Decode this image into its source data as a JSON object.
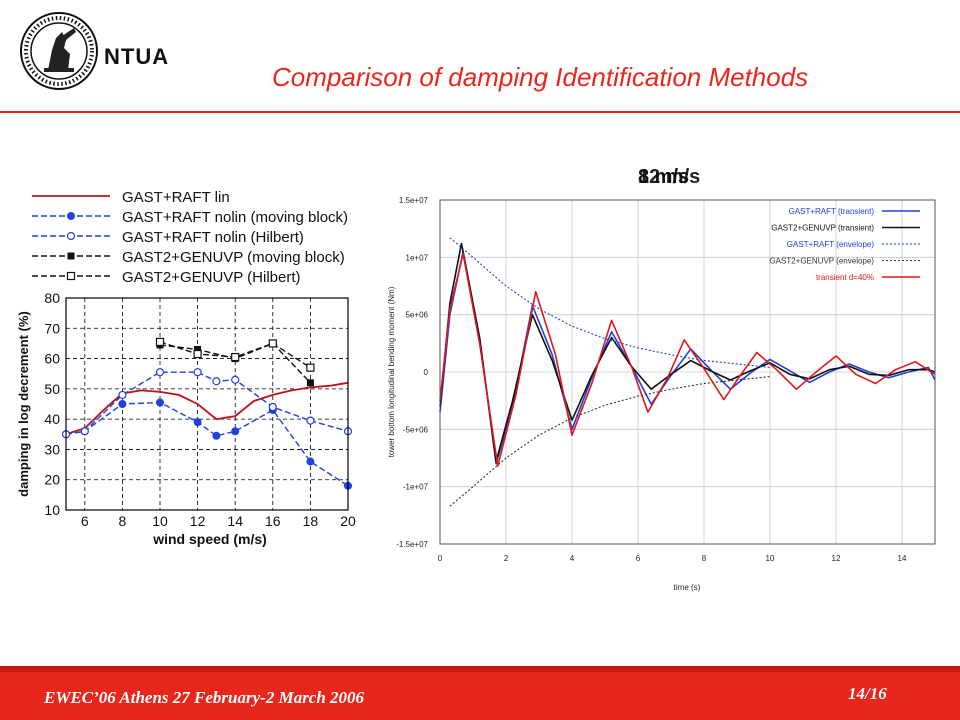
{
  "header": {
    "brand": "NTUA",
    "title": "Comparison of damping Identification Methods",
    "colors": {
      "accent": "#e8261b"
    }
  },
  "speed_labels": [
    "12 m/s",
    "8 m/s"
  ],
  "footer": {
    "left": "EWEC’06 Athens 27 February-2 March 2006",
    "page": "14/16"
  },
  "chart_data": [
    {
      "type": "line",
      "xlabel": "wind speed (m/s)",
      "ylabel": "damping in log decrement (%)",
      "xlim": [
        5,
        20
      ],
      "ylim": [
        10,
        80
      ],
      "xticks": [
        6,
        8,
        10,
        12,
        14,
        16,
        18,
        20
      ],
      "yticks": [
        10,
        20,
        30,
        40,
        50,
        60,
        70,
        80
      ],
      "grid": true,
      "legend_placement": "top",
      "series": [
        {
          "name": "GAST+RAFT lin",
          "color": "#c0101a",
          "dash": "solid",
          "marker": "none",
          "x": [
            5,
            6,
            7,
            8,
            9,
            10,
            11,
            12,
            13,
            14,
            15,
            16,
            17,
            18,
            19,
            20
          ],
          "y": [
            35,
            37,
            43,
            48.5,
            49.5,
            49,
            48,
            45,
            40,
            41,
            46,
            48,
            49.5,
            50.5,
            51,
            52
          ]
        },
        {
          "name": "GAST+RAFT nolin (moving block)",
          "color": "#2040e0",
          "dash": "dashed",
          "marker": "filled-circle",
          "x": [
            5,
            6,
            8,
            10,
            12,
            13,
            14,
            16,
            18,
            20
          ],
          "y": [
            35,
            36,
            45,
            45.5,
            39,
            34.5,
            36,
            43,
            26,
            18
          ]
        },
        {
          "name": "GAST+RAFT nolin (Hilbert)",
          "color": "#2040e0",
          "dash": "dashed",
          "marker": "open-circle",
          "x": [
            5,
            6,
            8,
            10,
            12,
            13,
            14,
            16,
            18,
            20
          ],
          "y": [
            35,
            36,
            48,
            55.5,
            55.5,
            52.5,
            53,
            44,
            39.5,
            36
          ]
        },
        {
          "name": "GAST2+GENUVP (moving block)",
          "color": "#111111",
          "dash": "dashed",
          "marker": "filled-square",
          "x": [
            10,
            12,
            14,
            16,
            18
          ],
          "y": [
            64.5,
            63,
            60,
            65,
            52
          ]
        },
        {
          "name": "GAST2+GENUVP (Hilbert)",
          "color": "#111111",
          "dash": "dashed",
          "marker": "open-square",
          "x": [
            10,
            12,
            14,
            16,
            18
          ],
          "y": [
            65.5,
            61.5,
            60.5,
            65,
            57
          ]
        }
      ]
    },
    {
      "type": "line",
      "xlabel": "time (s)",
      "ylabel": "tower bottom longitudinal bending moment (Nm)",
      "xlim": [
        0,
        15
      ],
      "ylim": [
        -15000000,
        15000000
      ],
      "xticks": [
        0,
        2,
        4,
        6,
        8,
        10,
        12,
        14
      ],
      "yticks": [
        -15000000,
        -10000000,
        -5000000,
        0,
        5000000,
        10000000,
        15000000
      ],
      "ytick_labels": [
        "-1.5e+07",
        "-1e+07",
        "-5e+06",
        "0",
        "5e+06",
        "1e+07",
        "1.5e+07"
      ],
      "grid": true,
      "legend_placement": "top-right",
      "series": [
        {
          "name": "GAST+RAFT (transient)",
          "color": "#1f3fe0",
          "dash": "solid",
          "x": [
            0,
            0.3,
            0.7,
            1.2,
            1.7,
            2.2,
            2.8,
            3.4,
            4.0,
            4.6,
            5.2,
            5.8,
            6.4,
            7.0,
            7.6,
            8.2,
            8.8,
            9.4,
            10.0,
            10.6,
            11.2,
            11.8,
            12.4,
            13.0,
            13.6,
            14.2,
            14.8,
            15.0
          ],
          "y": [
            -3500000,
            5000000,
            10500000,
            3000000,
            -8000000,
            -3000000,
            5800000,
            1500000,
            -5000000,
            -500000,
            3500000,
            500000,
            -2800000,
            -300000,
            2000000,
            200000,
            -1500000,
            -100000,
            1100000,
            100000,
            -900000,
            0,
            700000,
            0,
            -500000,
            0,
            400000,
            -700000
          ]
        },
        {
          "name": "GAST2+GENUVP (transient)",
          "color": "#111111",
          "dash": "solid",
          "x": [
            0,
            0.3,
            0.65,
            1.2,
            1.7,
            2.2,
            2.8,
            3.4,
            4.0,
            4.6,
            5.2,
            5.8,
            6.4,
            7.0,
            7.6,
            8.2,
            8.8,
            9.4,
            10.0,
            10.6,
            11.2,
            11.8,
            12.4,
            13.0,
            13.6,
            14.2,
            14.8,
            15.0
          ],
          "y": [
            -3000000,
            6000000,
            11200000,
            3000000,
            -7800000,
            -2500000,
            5000000,
            1000000,
            -4200000,
            -300000,
            3000000,
            500000,
            -1500000,
            -200000,
            1000000,
            100000,
            -700000,
            100000,
            800000,
            -200000,
            -600000,
            200000,
            500000,
            -200000,
            -300000,
            200000,
            200000,
            0
          ]
        },
        {
          "name": "GAST+RAFT (envelope)",
          "color": "#1f3fe0",
          "dash": "dotted",
          "x": [
            0.3,
            1,
            2,
            3,
            4,
            5,
            6,
            7,
            8,
            9,
            10
          ],
          "y": [
            11700000,
            10000000,
            7500000,
            5500000,
            4000000,
            2900000,
            2100000,
            1500000,
            1000000,
            700000,
            400000
          ]
        },
        {
          "name": "GAST2+GENUVP (envelope)",
          "color": "#333333",
          "dash": "dotted",
          "x": [
            0.3,
            1,
            2,
            3,
            4,
            5,
            6,
            7,
            8,
            9,
            10
          ],
          "y": [
            -11700000,
            -10000000,
            -7500000,
            -5500000,
            -4000000,
            -2900000,
            -2100000,
            -1500000,
            -1000000,
            -700000,
            -400000
          ]
        },
        {
          "name": "transient d=40%",
          "color": "#e01818",
          "dash": "solid",
          "x": [
            0,
            0.3,
            0.7,
            1.2,
            1.75,
            2.3,
            2.9,
            3.5,
            4.0,
            4.6,
            5.2,
            5.8,
            6.3,
            6.9,
            7.4,
            8.0,
            8.6,
            9.1,
            9.6,
            10.2,
            10.8,
            11.4,
            12.0,
            12.6,
            13.2,
            13.8,
            14.4,
            15.0
          ],
          "y": [
            -2500000,
            5500000,
            10300000,
            2500000,
            -8200000,
            -2000000,
            7000000,
            1500000,
            -5500000,
            -1000000,
            4500000,
            500000,
            -3500000,
            -500000,
            2800000,
            300000,
            -2400000,
            -300000,
            1700000,
            200000,
            -1500000,
            0,
            1400000,
            -200000,
            -1000000,
            200000,
            900000,
            -200000
          ]
        }
      ]
    }
  ]
}
